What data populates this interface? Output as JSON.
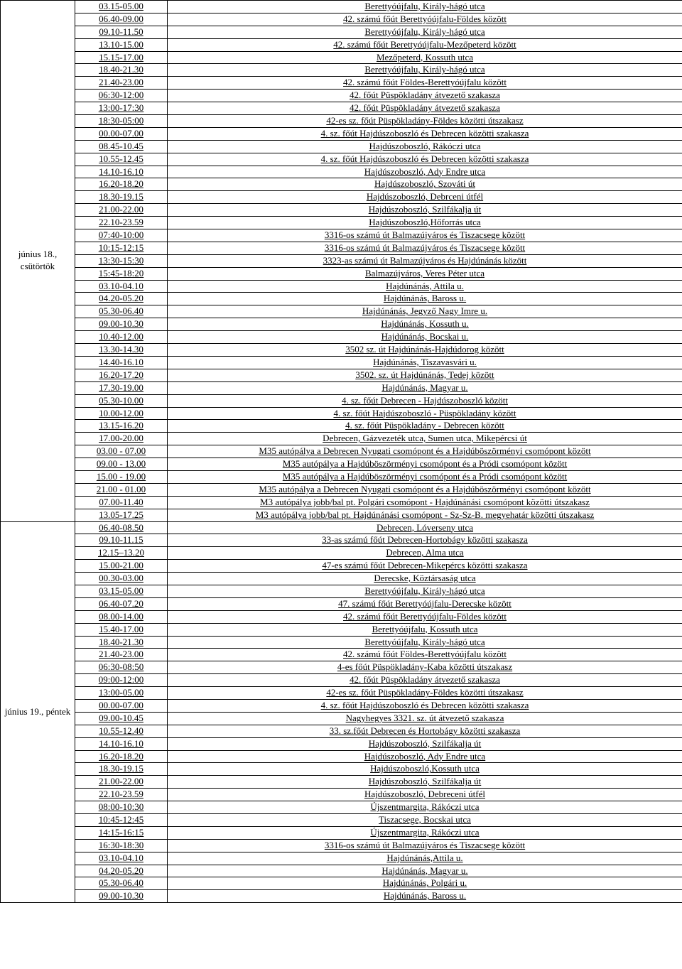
{
  "groups": [
    {
      "date": "június 18., csütörtök",
      "rows": [
        {
          "time": "03.15-05.00",
          "desc": "Berettyóújfalu, Király-hágó utca"
        },
        {
          "time": "06.40-09.00",
          "desc": "42. számú főút Berettyóújfalu-Földes között"
        },
        {
          "time": "09.10-11.50",
          "desc": "Berettyóújfalu, Király-hágó utca"
        },
        {
          "time": "13.10-15.00",
          "desc": "42. számú főút Berettyóújfalu-Mezőpeterd között"
        },
        {
          "time": "15.15-17.00",
          "desc": "Mezőpeterd, Kossuth utca"
        },
        {
          "time": "18.40-21.30",
          "desc": "Berettyóújfalu, Király-hágó utca"
        },
        {
          "time": "21.40-23.00",
          "desc": "42. számú főút Földes-Berettyóújfalu között"
        },
        {
          "time": "06:30-12:00",
          "desc": "42. főút Püspökladány átvezető szakasza"
        },
        {
          "time": "13:00-17:30",
          "desc": "42. főút Püspökladány átvezető szakasza"
        },
        {
          "time": "18:30-05:00",
          "desc": "42-es sz. főút Püspökladány-Földes közötti útszakasz"
        },
        {
          "time": "00.00-07.00",
          "desc": "4. sz. főút Hajdúszoboszló és Debrecen közötti szakasza"
        },
        {
          "time": "08.45-10.45",
          "desc": "Hajdúszoboszló, Rákóczi utca"
        },
        {
          "time": "10.55-12.45",
          "desc": "4. sz. főút Hajdúszoboszló és Debrecen közötti szakasza"
        },
        {
          "time": "14.10-16.10",
          "desc": "Hajdúszoboszló, Ady Endre utca"
        },
        {
          "time": "16.20-18.20",
          "desc": "Hajdúszoboszló, Szováti út"
        },
        {
          "time": "18.30-19.15",
          "desc": "Hajdúszoboszló, Debrceni útfél"
        },
        {
          "time": "21.00-22.00",
          "desc": "Hajdúszoboszló, Szilfákalja út"
        },
        {
          "time": "22.10-23.59",
          "desc": "Hajdúszoboszló,Hőforrás utca"
        },
        {
          "time": "07:40-10:00",
          "desc": "3316-os számú út Balmazújváros és Tiszacsege között"
        },
        {
          "time": "10:15-12:15",
          "desc": "3316-os számú út Balmazújváros és Tiszacsege között"
        },
        {
          "time": "13:30-15:30",
          "desc": "3323-as számú út Balmazújváros és Hajdúnánás között"
        },
        {
          "time": "15:45-18:20",
          "desc": "Balmazújváros, Veres Péter utca"
        },
        {
          "time": "03.10-04.10",
          "desc": "Hajdúnánás, Attila u."
        },
        {
          "time": "04.20-05.20",
          "desc": "Hajdúnánás, Baross u."
        },
        {
          "time": "05.30-06.40",
          "desc": "Hajdúnánás, Jegyző Nagy Imre u."
        },
        {
          "time": "09.00-10.30",
          "desc": "Hajdúnánás, Kossuth  u."
        },
        {
          "time": "10.40-12.00",
          "desc": "Hajdúnánás, Bocskai u."
        },
        {
          "time": "13.30-14.30",
          "desc": "3502 sz. út Hajdúnánás-Hajdúdorog között"
        },
        {
          "time": "14.40-16.10",
          "desc": "Hajdúnánás, Tiszavasvári u."
        },
        {
          "time": "16.20-17.20",
          "desc": "3502. sz. út Hajdúnánás, Tedej között"
        },
        {
          "time": "17.30-19.00",
          "desc": "Hajdúnánás, Magyar u."
        },
        {
          "time": "05.30-10.00",
          "desc": "4. sz. főút Debrecen - Hajdúszoboszló között"
        },
        {
          "time": "10.00-12.00",
          "desc": "4. sz. főút Hajdúszoboszló - Püspökladány között"
        },
        {
          "time": "13.15-16.20",
          "desc": "4. sz. főút Püspökladány - Debrecen között"
        },
        {
          "time": "17.00-20.00",
          "desc": "Debrecen, Gázvezeték utca, Sumen utca, Mikepércsi út"
        },
        {
          "time": "03.00 - 07.00",
          "desc": "M35 autópálya a Debrecen Nyugati csomópont és a Hajdúböszörményi csomópont között"
        },
        {
          "time": "09.00 - 13.00",
          "desc": "M35 autópálya a Hajdúböszörményi csomópont és a Pródi csomópont között"
        },
        {
          "time": "15.00 - 19.00",
          "desc": "M35 autópálya a Hajdúböszörményi csomópont és a Pródi csomópont között"
        },
        {
          "time": "21.00 - 01.00",
          "desc": "M35 autópálya a Debrecen Nyugati csomópont és a Hajdúböszörményi csomópont között"
        },
        {
          "time": "07.00-11.40",
          "desc": "M3 autópálya jobb/bal pt. Polgári csomópont - Hajdúnánási csomópont közötti útszakasz"
        },
        {
          "time": "13.05-17.25",
          "desc": "M3 autópálya jobb/bal pt. Hajdúnánási csomópont - Sz-Sz-B. megyehatár közötti útszakasz"
        }
      ]
    },
    {
      "date": "június 19., péntek",
      "rows": [
        {
          "time": "06.40-08.50",
          "desc": "Debrecen, Lóverseny utca"
        },
        {
          "time": "09.10-11.15",
          "desc": "33-as számú főút Debrecen-Hortobágy közötti szakasza"
        },
        {
          "time": "12.15–13.20",
          "desc": "Debrecen, Alma utca"
        },
        {
          "time": "15.00-21.00",
          "desc": "47-es számú főút Debrecen-Mikepércs közötti szakasza"
        },
        {
          "time": "00.30-03.00",
          "desc": "Derecske, Köztársaság utca"
        },
        {
          "time": "03.15-05.00",
          "desc": "Berettyóújfalu, Király-hágó utca"
        },
        {
          "time": "06.40-07.20",
          "desc": "47. számú főút Berettyóújfalu-Derecske között"
        },
        {
          "time": "08.00-14.00",
          "desc": "42. számú főút Berettyóújfalu-Földes között"
        },
        {
          "time": "15.40-17.00",
          "desc": "Berettyóújfalu, Kossuth utca"
        },
        {
          "time": "18.40-21.30",
          "desc": "Berettyóújfalu, Király-hágó utca"
        },
        {
          "time": "21.40-23.00",
          "desc": "42. számú főút Földes-Berettyóújfalu között"
        },
        {
          "time": "06:30-08:50",
          "desc": "4-es főút Püspökladány-Kaba közötti útszakasz"
        },
        {
          "time": "09:00-12:00",
          "desc": "42. főút Püspökladány átvezető szakasza"
        },
        {
          "time": "13:00-05.00",
          "desc": "42-es sz. főút Püspökladány-Földes közötti útszakasz"
        },
        {
          "time": "00.00-07.00",
          "desc": "4. sz. főút Hajdúszoboszló és Debrecen közötti szakasza"
        },
        {
          "time": "09.00-10.45",
          "desc": "Nagyhegyes 3321. sz. út átvezető szakasza"
        },
        {
          "time": "10.55-12.40",
          "desc": "33. sz.főút Debrecen és Hortobágy közötti szakasza"
        },
        {
          "time": "14.10-16.10",
          "desc": "Hajdúszoboszló, Szilfákalja út"
        },
        {
          "time": "16.20-18.20",
          "desc": "Hajdúszoboszló, Ady Endre utca"
        },
        {
          "time": "18.30-19.15",
          "desc": "Hajdúszoboszló,Kossuth utca"
        },
        {
          "time": "21.00-22.00",
          "desc": "Hajdúszoboszló, Szilfákalja út"
        },
        {
          "time": "22.10-23.59",
          "desc": "Hajdúszoboszló, Debreceni útfél"
        },
        {
          "time": "08:00-10:30",
          "desc": "Újszentmargita, Rákóczi utca"
        },
        {
          "time": "10:45-12:45",
          "desc": "Tiszacsege, Bocskai utca"
        },
        {
          "time": "14:15-16:15",
          "desc": "Újszentmargita, Rákóczi utca"
        },
        {
          "time": "16:30-18:30",
          "desc": "3316-os számú út Balmazújváros és Tiszacsege között"
        },
        {
          "time": "03.10-04.10",
          "desc": "Hajdúnánás,Attila u."
        },
        {
          "time": "04.20-05.20",
          "desc": "Hajdúnánás, Magyar u."
        },
        {
          "time": "05.30-06.40",
          "desc": "Hajdúnánás, Polgári u."
        },
        {
          "time": "09.00-10.30",
          "desc": "Hajdúnánás, Baross u."
        }
      ]
    }
  ]
}
